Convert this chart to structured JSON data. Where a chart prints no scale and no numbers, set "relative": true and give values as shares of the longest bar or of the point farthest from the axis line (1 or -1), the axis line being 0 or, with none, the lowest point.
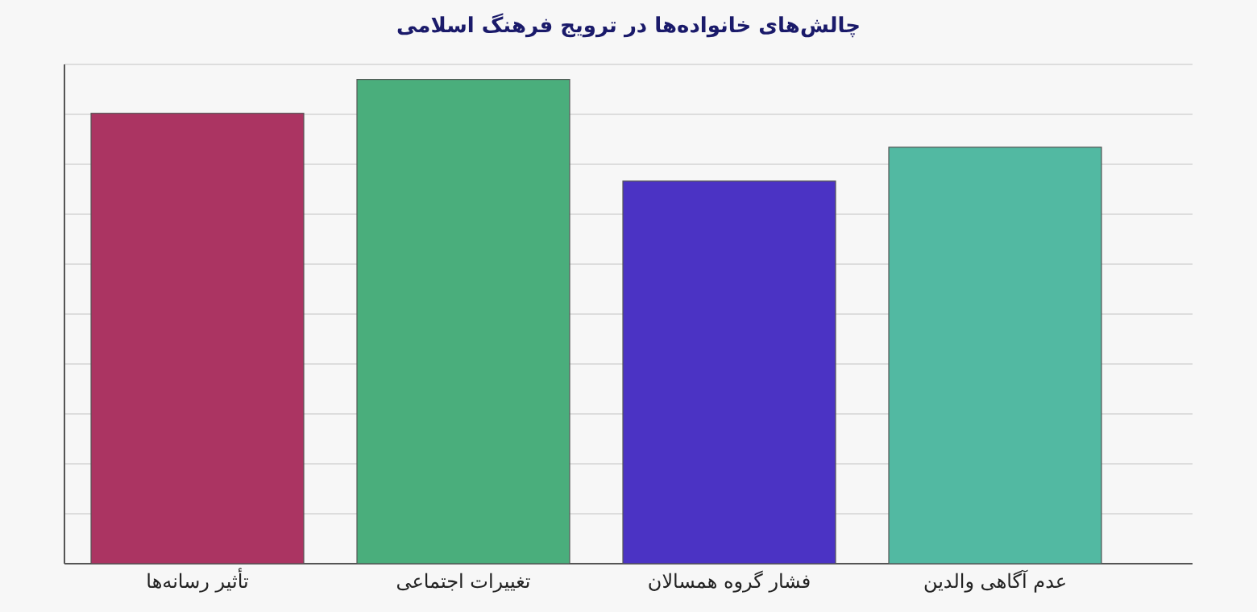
{
  "chart_data": {
    "type": "bar",
    "title": "چالش‌های خانواده‌ها در ترویج فرهنگ اسلامی",
    "categories": [
      "تأثیر رسانه‌ها",
      "تغییرات اجتماعی",
      "فشار گروه همسالان",
      "عدم آگاهی والدین"
    ],
    "values": [
      0.93,
      1,
      0.79,
      0.86
    ],
    "colors": [
      "#ab3462",
      "#4aae7c",
      "#4b33c4",
      "#52b9a2"
    ],
    "relative": true,
    "grid": true
  }
}
